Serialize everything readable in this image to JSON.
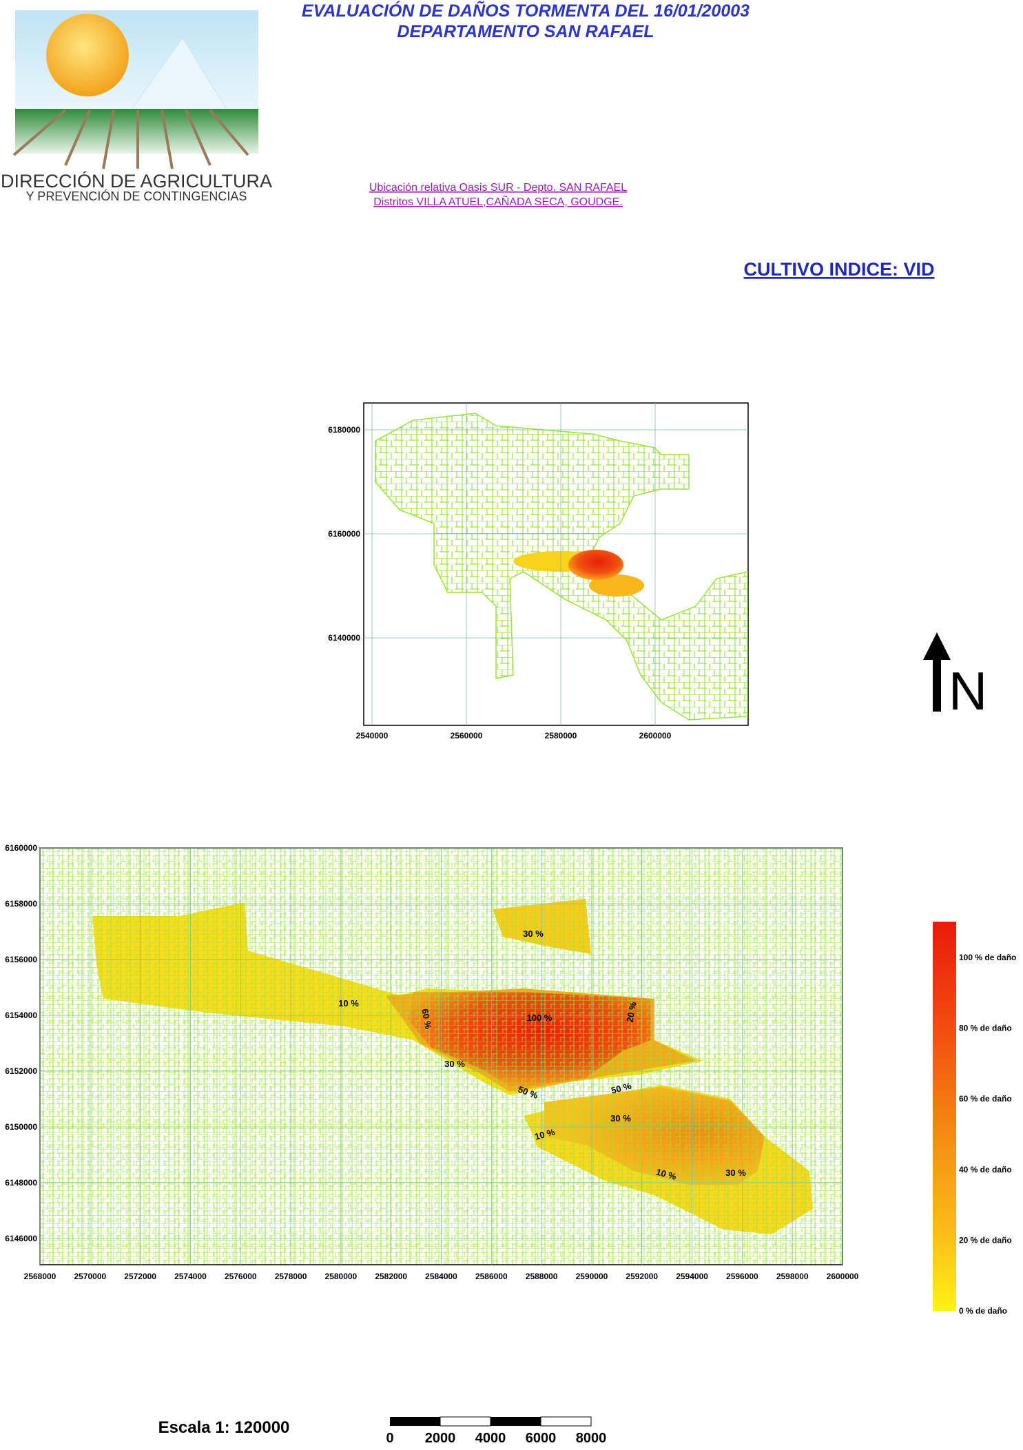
{
  "header": {
    "title_line1": "EVALUACIÓN DE DAÑOS TORMENTA DEL 16/01/20003",
    "title_line2": "DEPARTAMENTO SAN RAFAEL",
    "location_line1": "Ubicación relativa Oasis SUR - Depto. SAN RAFAEL",
    "location_line2": "Distritos  VILLA ATUEL,CAÑADA SECA, GOUDGE.",
    "crop": "CULTIVO INDICE: VID"
  },
  "logo": {
    "line1": "DIRECCIÓN DE AGRICULTURA",
    "line2": "Y PREVENCIÓN DE CONTINGENCIAS"
  },
  "overview_map": {
    "xticks": [
      2540000,
      2560000,
      2580000,
      2600000
    ],
    "yticks": [
      6180000,
      6160000,
      6140000
    ]
  },
  "north_arrow": {
    "label": "N"
  },
  "detail_map": {
    "xticks": [
      2568000,
      2570000,
      2572000,
      2574000,
      2576000,
      2578000,
      2580000,
      2582000,
      2584000,
      2586000,
      2588000,
      2590000,
      2592000,
      2594000,
      2596000,
      2598000,
      2600000
    ],
    "yticks": [
      6160000,
      6158000,
      6156000,
      6154000,
      6152000,
      6150000,
      6148000,
      6146000
    ],
    "labels": [
      "30 %",
      "10 %",
      "60 %",
      "100 %",
      "20 %",
      "30 %",
      "50 %",
      "50 %",
      "30 %",
      "10 %",
      "10 %",
      "30 %"
    ]
  },
  "legend": {
    "labels": [
      "100 % de daño",
      "80 % de daño",
      "60 % de daño",
      "40 % de daño",
      "20 % de daño",
      "0 % de daño"
    ]
  },
  "scale": {
    "text": "Escala 1: 120000",
    "bar_labels": [
      0,
      2000,
      4000,
      6000,
      8000
    ]
  }
}
